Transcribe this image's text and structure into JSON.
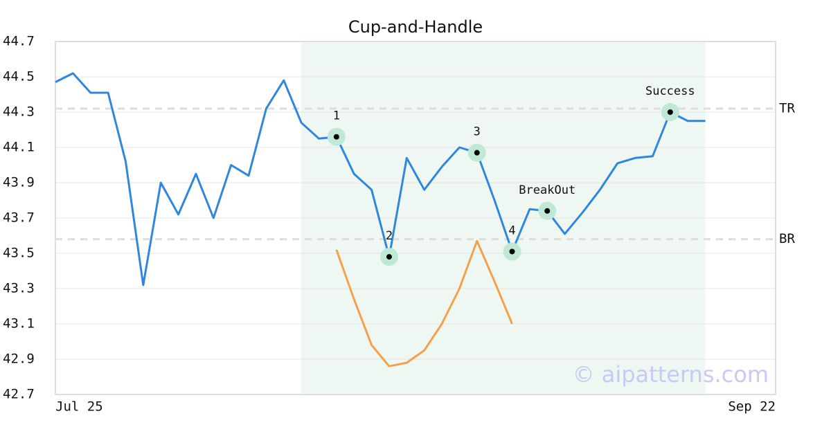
{
  "chart_data": {
    "type": "line",
    "title": "Cup-and-Handle",
    "categories": [
      "Jul 25",
      null,
      null,
      null,
      null,
      null,
      null,
      null,
      null,
      null,
      null,
      null,
      null,
      null,
      null,
      null,
      null,
      null,
      null,
      null,
      null,
      null,
      null,
      null,
      null,
      null,
      null,
      null,
      null,
      null,
      null,
      null,
      null,
      null,
      null,
      null,
      null,
      null,
      null,
      null,
      null,
      "Sep 22"
    ],
    "series": [
      {
        "color": "#2e86de",
        "values": [
          44.47,
          44.52,
          44.41,
          44.41,
          44.02,
          43.32,
          43.9,
          43.72,
          43.95,
          43.7,
          44.0,
          43.94,
          44.32,
          44.48,
          44.24,
          44.15,
          44.16,
          43.95,
          43.86,
          43.48,
          44.04,
          43.86,
          43.99,
          44.1,
          44.07,
          43.8,
          43.51,
          43.75,
          43.74,
          43.61,
          43.73,
          43.86,
          44.01,
          44.04,
          44.05,
          44.3,
          44.25,
          44.25,
          null,
          null,
          null,
          null
        ]
      },
      {
        "color": "#f5a04a",
        "values": [
          null,
          null,
          null,
          null,
          null,
          null,
          null,
          null,
          null,
          null,
          null,
          null,
          null,
          null,
          null,
          null,
          43.52,
          43.24,
          42.98,
          42.86,
          42.88,
          42.95,
          43.1,
          43.3,
          43.57,
          43.34,
          43.1,
          null,
          null,
          null,
          null,
          null,
          null,
          null,
          null,
          null,
          null,
          null,
          null,
          null,
          null,
          null
        ]
      }
    ],
    "ylim": [
      42.7,
      44.7
    ],
    "yticks": [
      42.7,
      42.9,
      43.1,
      43.3,
      43.5,
      43.7,
      43.9,
      44.1,
      44.3,
      44.5,
      44.7
    ],
    "grid": true,
    "highlight": [
      14,
      37
    ],
    "levels": [
      {
        "label": "TR",
        "value": 44.32
      },
      {
        "label": "BR",
        "value": 43.58
      }
    ],
    "annotations": [
      {
        "label": "1",
        "x": 16
      },
      {
        "label": "2",
        "x": 19
      },
      {
        "label": "3",
        "x": 24
      },
      {
        "label": "4",
        "x": 26
      },
      {
        "label": "BreakOut",
        "x": 28
      },
      {
        "label": "Success",
        "x": 35
      }
    ],
    "watermark": "© aipatterns.com"
  }
}
